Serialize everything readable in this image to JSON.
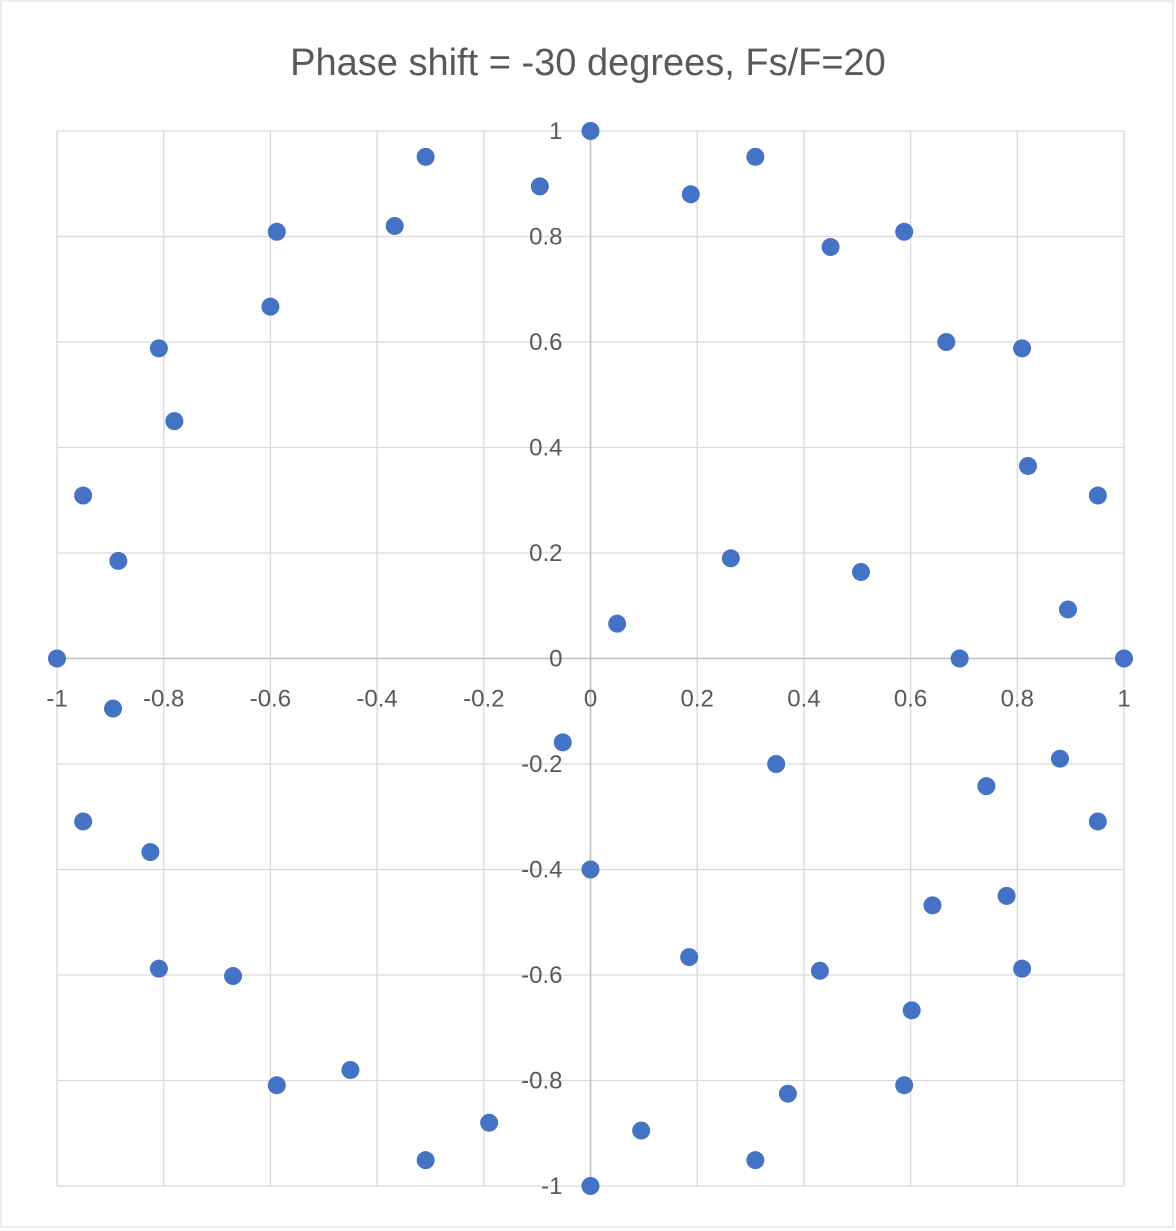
{
  "chart_data": {
    "type": "scatter",
    "title": "Phase shift = -30 degrees, Fs/F=20",
    "xlabel": "",
    "ylabel": "",
    "xlim": [
      -1,
      1
    ],
    "ylim": [
      -1,
      1
    ],
    "x_ticks": [
      "-1",
      "-0.8",
      "-0.6",
      "-0.4",
      "-0.2",
      "0",
      "0.2",
      "0.4",
      "0.6",
      "0.8",
      "1"
    ],
    "y_ticks": [
      "-1",
      "-0.8",
      "-0.6",
      "-0.4",
      "-0.2",
      "0",
      "0.2",
      "0.4",
      "0.6",
      "0.8",
      "1"
    ],
    "grid": true,
    "legend": "none",
    "marker_color": "#4472C4",
    "series": [
      {
        "points": [
          [
            0,
            1
          ],
          [
            0.309,
            0.951
          ],
          [
            0.588,
            0.809
          ],
          [
            0.809,
            0.588
          ],
          [
            0.951,
            0.309
          ],
          [
            1,
            0
          ],
          [
            0.951,
            -0.309
          ],
          [
            0.809,
            -0.588
          ],
          [
            0.588,
            -0.809
          ],
          [
            0.309,
            -0.951
          ],
          [
            0,
            -1
          ],
          [
            -0.309,
            -0.951
          ],
          [
            -0.588,
            -0.809
          ],
          [
            -0.809,
            -0.588
          ],
          [
            -0.951,
            -0.309
          ],
          [
            -1,
            0
          ],
          [
            -0.951,
            0.309
          ],
          [
            -0.809,
            0.588
          ],
          [
            -0.588,
            0.809
          ],
          [
            -0.309,
            0.951
          ],
          [
            -0.095,
            0.895
          ],
          [
            -0.367,
            0.82
          ],
          [
            -0.6,
            0.667
          ],
          [
            -0.78,
            0.45
          ],
          [
            -0.885,
            0.185
          ],
          [
            -0.895,
            -0.095
          ],
          [
            -0.825,
            -0.367
          ],
          [
            -0.67,
            -0.602
          ],
          [
            -0.45,
            -0.78
          ],
          [
            -0.19,
            -0.88
          ],
          [
            0.095,
            -0.895
          ],
          [
            0.37,
            -0.825
          ],
          [
            0.602,
            -0.667
          ],
          [
            0.78,
            -0.45
          ],
          [
            0.88,
            -0.19
          ],
          [
            0.895,
            0.093
          ],
          [
            0.82,
            0.365
          ],
          [
            0.667,
            0.6
          ],
          [
            0.45,
            0.78
          ],
          [
            0.188,
            0.88
          ],
          [
            0.05,
            0.066
          ],
          [
            0.263,
            0.19
          ],
          [
            0.507,
            0.164
          ],
          [
            0.692,
            0
          ],
          [
            0.742,
            -0.242
          ],
          [
            0.641,
            -0.468
          ],
          [
            0.43,
            -0.592
          ],
          [
            0.185,
            -0.566
          ],
          [
            0,
            -0.4
          ],
          [
            -0.052,
            -0.159
          ],
          [
            0.348,
            -0.2
          ]
        ]
      }
    ]
  }
}
